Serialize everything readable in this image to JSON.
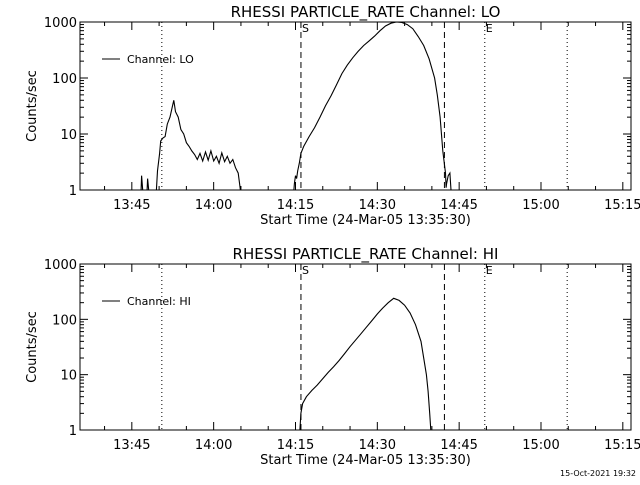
{
  "footer": {
    "timestamp": "15-Oct-2021 19:32"
  },
  "chart_data": [
    {
      "type": "line",
      "title": "RHESSI PARTICLE_RATE Channel: LO",
      "xlabel": "Start Time (24-Mar-05 13:35:30)",
      "ylabel": "Counts/sec",
      "x_unit": "minutes after 13:35:30",
      "xlim": [
        0,
        101
      ],
      "ylim": [
        1,
        1000
      ],
      "y_scale": "log",
      "xticks": [
        {
          "label": "13:45",
          "value": 9.5
        },
        {
          "label": "14:00",
          "value": 24.5
        },
        {
          "label": "14:15",
          "value": 39.5
        },
        {
          "label": "14:30",
          "value": 54.5
        },
        {
          "label": "14:45",
          "value": 69.5
        },
        {
          "label": "15:00",
          "value": 84.5
        },
        {
          "label": "15:15",
          "value": 99.5
        }
      ],
      "yticks": [
        {
          "label": "1",
          "value": 1
        },
        {
          "label": "10",
          "value": 10
        },
        {
          "label": "100",
          "value": 100
        },
        {
          "label": "1000",
          "value": 1000
        }
      ],
      "legend": {
        "label": "Channel: LO",
        "position": "top-left"
      },
      "vlines": [
        {
          "x": 15.0,
          "style": "dotted"
        },
        {
          "x": 40.5,
          "style": "dashed",
          "label": "S"
        },
        {
          "x": 66.8,
          "style": "dashed"
        },
        {
          "x": 74.2,
          "style": "dotted",
          "label": "E"
        },
        {
          "x": 89.3,
          "style": "dotted"
        }
      ],
      "series": [
        {
          "name": "Channel: LO",
          "segments": [
            [
              [
                11.2,
                1
              ],
              [
                11.3,
                1.8
              ],
              [
                11.5,
                1
              ]
            ],
            [
              [
                12.3,
                1
              ],
              [
                12.4,
                1.6
              ],
              [
                12.6,
                1
              ]
            ],
            [
              [
                14.0,
                1
              ],
              [
                14.2,
                2.2
              ],
              [
                14.6,
                4.5
              ],
              [
                14.8,
                7.5
              ],
              [
                15.2,
                8.5
              ],
              [
                15.6,
                9
              ],
              [
                16.0,
                15
              ],
              [
                16.5,
                20
              ],
              [
                16.9,
                30
              ],
              [
                17.2,
                40
              ],
              [
                17.5,
                25
              ],
              [
                18.0,
                20
              ],
              [
                18.5,
                12
              ],
              [
                19.0,
                10
              ],
              [
                19.5,
                7
              ],
              [
                20.0,
                6
              ],
              [
                20.5,
                5
              ],
              [
                21.0,
                4.3
              ],
              [
                21.5,
                3.5
              ],
              [
                22.0,
                4.5
              ],
              [
                22.5,
                3.3
              ],
              [
                23.0,
                4.8
              ],
              [
                23.5,
                3.4
              ],
              [
                24.0,
                5
              ],
              [
                24.5,
                3.3
              ],
              [
                25.0,
                4
              ],
              [
                25.5,
                3
              ],
              [
                26.0,
                4.6
              ],
              [
                26.5,
                3.2
              ],
              [
                27.0,
                4
              ],
              [
                27.5,
                3
              ],
              [
                28.0,
                3.5
              ],
              [
                28.5,
                2.5
              ],
              [
                29.0,
                2
              ],
              [
                29.4,
                1
              ]
            ],
            [
              [
                39.2,
                1
              ],
              [
                39.3,
                1.3
              ],
              [
                39.5,
                1.8
              ],
              [
                39.7,
                1.6
              ],
              [
                39.9,
                2.2
              ],
              [
                40.2,
                3
              ],
              [
                40.5,
                4.5
              ],
              [
                41.0,
                6
              ],
              [
                42.0,
                9
              ],
              [
                43.0,
                13
              ],
              [
                44.0,
                20
              ],
              [
                45.0,
                32
              ],
              [
                46.0,
                48
              ],
              [
                47.0,
                75
              ],
              [
                48.0,
                120
              ],
              [
                49.0,
                170
              ],
              [
                50.0,
                230
              ],
              [
                51.0,
                300
              ],
              [
                52.0,
                380
              ],
              [
                53.0,
                460
              ],
              [
                54.0,
                560
              ],
              [
                55.0,
                700
              ],
              [
                56.0,
                850
              ],
              [
                57.0,
                950
              ],
              [
                58.0,
                1000
              ],
              [
                59.0,
                980
              ],
              [
                60.0,
                900
              ],
              [
                61.0,
                760
              ],
              [
                62.0,
                550
              ],
              [
                63.0,
                380
              ],
              [
                64.0,
                220
              ],
              [
                65.0,
                100
              ],
              [
                65.5,
                50
              ],
              [
                66.0,
                20
              ],
              [
                66.5,
                5
              ],
              [
                67.0,
                2
              ],
              [
                67.1,
                1.1
              ],
              [
                67.2,
                1.3
              ],
              [
                67.5,
                1.8
              ],
              [
                67.8,
                2
              ],
              [
                68.0,
                1
              ]
            ]
          ]
        }
      ]
    },
    {
      "type": "line",
      "title": "RHESSI PARTICLE_RATE Channel: HI",
      "xlabel": "Start Time (24-Mar-05 13:35:30)",
      "ylabel": "Counts/sec",
      "x_unit": "minutes after 13:35:30",
      "xlim": [
        0,
        101
      ],
      "ylim": [
        1,
        1000
      ],
      "y_scale": "log",
      "xticks": [
        {
          "label": "13:45",
          "value": 9.5
        },
        {
          "label": "14:00",
          "value": 24.5
        },
        {
          "label": "14:15",
          "value": 39.5
        },
        {
          "label": "14:30",
          "value": 54.5
        },
        {
          "label": "14:45",
          "value": 69.5
        },
        {
          "label": "15:00",
          "value": 84.5
        },
        {
          "label": "15:15",
          "value": 99.5
        }
      ],
      "yticks": [
        {
          "label": "1",
          "value": 1
        },
        {
          "label": "10",
          "value": 10
        },
        {
          "label": "100",
          "value": 100
        },
        {
          "label": "1000",
          "value": 1000
        }
      ],
      "legend": {
        "label": "Channel: HI",
        "position": "top-left"
      },
      "vlines": [
        {
          "x": 15.0,
          "style": "dotted"
        },
        {
          "x": 40.5,
          "style": "dashed",
          "label": "S"
        },
        {
          "x": 66.8,
          "style": "dashed"
        },
        {
          "x": 74.2,
          "style": "dotted",
          "label": "E"
        },
        {
          "x": 89.3,
          "style": "dotted"
        }
      ],
      "series": [
        {
          "name": "Channel: HI",
          "segments": [
            [
              [
                40.3,
                1
              ],
              [
                40.5,
                2
              ],
              [
                40.8,
                3
              ],
              [
                41.5,
                4
              ],
              [
                42.5,
                5.2
              ],
              [
                43.5,
                6.5
              ],
              [
                44.5,
                8.5
              ],
              [
                45.5,
                11
              ],
              [
                46.5,
                14
              ],
              [
                47.5,
                18
              ],
              [
                48.5,
                24
              ],
              [
                49.5,
                32
              ],
              [
                50.5,
                42
              ],
              [
                51.5,
                55
              ],
              [
                52.5,
                72
              ],
              [
                53.5,
                95
              ],
              [
                54.5,
                125
              ],
              [
                55.5,
                160
              ],
              [
                56.5,
                200
              ],
              [
                57.5,
                240
              ],
              [
                58.5,
                220
              ],
              [
                59.5,
                180
              ],
              [
                60.5,
                130
              ],
              [
                61.5,
                80
              ],
              [
                62.5,
                40
              ],
              [
                63.0,
                20
              ],
              [
                63.5,
                10
              ],
              [
                63.8,
                5
              ],
              [
                64.1,
                2
              ],
              [
                64.3,
                1
              ]
            ]
          ]
        }
      ]
    }
  ]
}
